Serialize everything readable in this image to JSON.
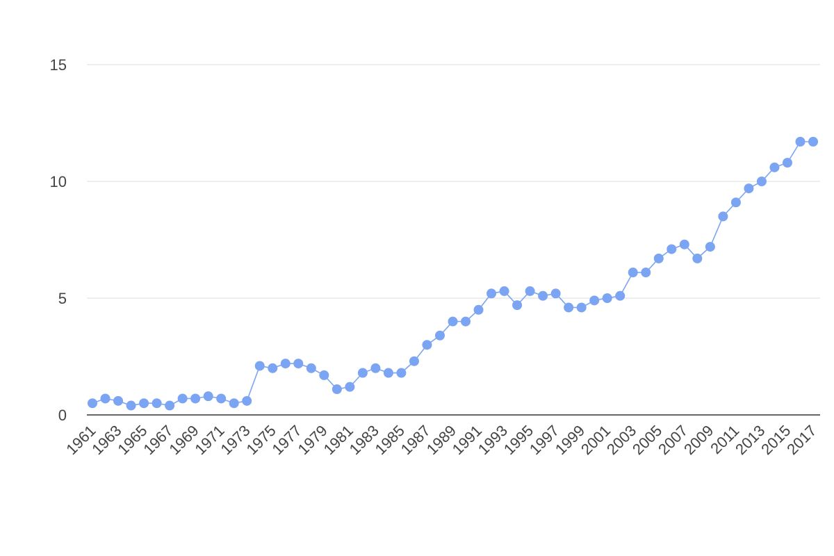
{
  "chart_data": {
    "type": "line",
    "x": [
      1961,
      1962,
      1963,
      1964,
      1965,
      1966,
      1967,
      1968,
      1969,
      1970,
      1971,
      1972,
      1973,
      1974,
      1975,
      1976,
      1977,
      1978,
      1979,
      1980,
      1981,
      1982,
      1983,
      1984,
      1985,
      1986,
      1987,
      1988,
      1989,
      1990,
      1991,
      1992,
      1993,
      1994,
      1995,
      1996,
      1997,
      1998,
      1999,
      2000,
      2001,
      2002,
      2003,
      2004,
      2005,
      2006,
      2007,
      2008,
      2009,
      2010,
      2011,
      2012,
      2013,
      2014,
      2015,
      2016,
      2017
    ],
    "series": [
      {
        "color": "#7ba4f2",
        "values": [
          0.5,
          0.7,
          0.6,
          0.4,
          0.5,
          0.5,
          0.4,
          0.7,
          0.7,
          0.8,
          0.7,
          0.5,
          0.6,
          2.1,
          2.0,
          2.2,
          2.2,
          2.0,
          1.7,
          1.1,
          1.2,
          1.8,
          2.0,
          1.8,
          1.8,
          2.3,
          3.0,
          3.4,
          4.0,
          4.0,
          4.5,
          5.2,
          5.3,
          4.7,
          5.3,
          5.1,
          5.2,
          4.6,
          4.6,
          4.9,
          5.0,
          5.1,
          6.1,
          6.1,
          6.7,
          7.1,
          7.3,
          6.7,
          7.2,
          8.5,
          9.1,
          9.7,
          10.0,
          10.6,
          10.8,
          11.7,
          11.7
        ]
      }
    ],
    "xlim": [
      1961,
      2017
    ],
    "xticks": [
      1961,
      1963,
      1965,
      1967,
      1969,
      1971,
      1973,
      1975,
      1977,
      1979,
      1981,
      1983,
      1985,
      1987,
      1989,
      1991,
      1993,
      1995,
      1997,
      1999,
      2001,
      2003,
      2005,
      2007,
      2009,
      2011,
      2013,
      2015,
      2017
    ],
    "ylim": [
      0,
      15
    ],
    "yticks": [
      0,
      5,
      10,
      15
    ],
    "grid": true
  }
}
